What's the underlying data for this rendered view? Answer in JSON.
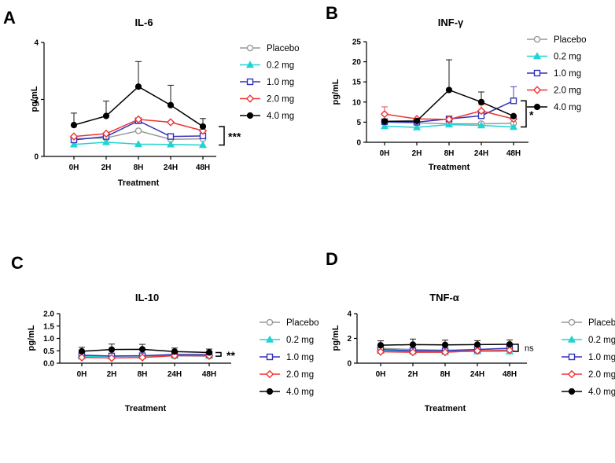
{
  "legend_names": [
    "Placebo",
    "0.2 mg",
    "1.0 mg",
    "2.0 mg",
    "4.0 mg"
  ],
  "series_colors": [
    "#999999",
    "#22d3d3",
    "#3333bb",
    "#ee3333",
    "#000000"
  ],
  "series_markers": [
    "circle-open",
    "triangle-filled",
    "square-open",
    "diamond-open",
    "circle-filled"
  ],
  "chart_data": [
    {
      "panel": "A",
      "type": "line",
      "title": "IL-6",
      "xlabel": "Treatment",
      "ylabel": "pg/mL",
      "categories": [
        "0H",
        "2H",
        "8H",
        "24H",
        "48H"
      ],
      "ylim": [
        0,
        4
      ],
      "yticks": [
        0,
        2,
        4
      ],
      "significance": "***",
      "series": [
        {
          "name": "Placebo",
          "values": [
            0.62,
            0.65,
            0.9,
            0.6,
            0.62
          ]
        },
        {
          "name": "0.2 mg",
          "values": [
            0.42,
            0.5,
            0.43,
            0.42,
            0.4
          ]
        },
        {
          "name": "1.0 mg",
          "values": [
            0.58,
            0.7,
            1.25,
            0.7,
            0.72
          ]
        },
        {
          "name": "2.0 mg",
          "values": [
            0.7,
            0.8,
            1.3,
            1.2,
            0.9
          ]
        },
        {
          "name": "4.0 mg",
          "values": [
            1.1,
            1.42,
            2.45,
            1.8,
            1.05
          ],
          "errors": [
            0.42,
            0.52,
            0.88,
            0.7,
            0.28
          ]
        }
      ]
    },
    {
      "panel": "B",
      "type": "line",
      "title": "INF-γ",
      "xlabel": "Treatment",
      "ylabel": "pg/mL",
      "categories": [
        "0H",
        "2H",
        "8H",
        "24H",
        "48H"
      ],
      "ylim": [
        0,
        25
      ],
      "yticks": [
        0,
        5,
        10,
        15,
        20,
        25
      ],
      "significance": "*",
      "series": [
        {
          "name": "Placebo",
          "values": [
            5,
            4.8,
            4.6,
            4.6,
            4.7
          ]
        },
        {
          "name": "0.2 mg",
          "values": [
            4,
            3.7,
            4.4,
            4.2,
            3.8
          ]
        },
        {
          "name": "1.0 mg",
          "values": [
            5.1,
            5.0,
            5.8,
            6.6,
            10.3
          ],
          "errors": [
            0,
            0,
            0,
            0,
            3.5
          ]
        },
        {
          "name": "2.0 mg",
          "values": [
            7.0,
            5.8,
            5.7,
            7.8,
            5.8
          ],
          "errors": [
            1.8,
            0,
            0,
            1.5,
            0
          ]
        },
        {
          "name": "4.0 mg",
          "values": [
            5.2,
            5.3,
            13.0,
            10.0,
            6.5
          ],
          "errors": [
            0,
            0,
            7.5,
            2.5,
            0
          ]
        }
      ]
    },
    {
      "panel": "C",
      "type": "line",
      "title": "IL-10",
      "xlabel": "Treatment",
      "ylabel": "pg/mL",
      "categories": [
        "0H",
        "2H",
        "8H",
        "24H",
        "48H"
      ],
      "ylim": [
        0,
        2.0
      ],
      "yticks": [
        0.0,
        0.5,
        1.0,
        1.5,
        2.0
      ],
      "ytick_labels": [
        "0.0",
        "0.5",
        "1.0",
        "1.5",
        "2.0"
      ],
      "significance": "**",
      "series": [
        {
          "name": "Placebo",
          "values": [
            0.3,
            0.28,
            0.28,
            0.3,
            0.28
          ]
        },
        {
          "name": "0.2 mg",
          "values": [
            0.27,
            0.28,
            0.3,
            0.3,
            0.3
          ]
        },
        {
          "name": "1.0 mg",
          "values": [
            0.32,
            0.29,
            0.3,
            0.35,
            0.35
          ]
        },
        {
          "name": "2.0 mg",
          "values": [
            0.23,
            0.21,
            0.23,
            0.3,
            0.3
          ]
        },
        {
          "name": "4.0 mg",
          "values": [
            0.48,
            0.55,
            0.56,
            0.47,
            0.43
          ],
          "errors": [
            0.16,
            0.22,
            0.2,
            0.14,
            0.14
          ]
        }
      ]
    },
    {
      "panel": "D",
      "type": "line",
      "title": "TNF-α",
      "xlabel": "Treatment",
      "ylabel": "pg/mL",
      "categories": [
        "0H",
        "2H",
        "8H",
        "24H",
        "48H"
      ],
      "ylim": [
        0,
        4
      ],
      "yticks": [
        0,
        2,
        4
      ],
      "significance": "ns",
      "series": [
        {
          "name": "Placebo",
          "values": [
            1.2,
            1.1,
            1.05,
            1.1,
            1.2
          ]
        },
        {
          "name": "0.2 mg",
          "values": [
            1.0,
            0.95,
            0.92,
            0.95,
            0.95
          ]
        },
        {
          "name": "1.0 mg",
          "values": [
            1.1,
            1.0,
            1.0,
            1.1,
            1.2
          ]
        },
        {
          "name": "2.0 mg",
          "values": [
            0.92,
            0.88,
            0.88,
            1.0,
            1.05
          ]
        },
        {
          "name": "4.0 mg",
          "values": [
            1.45,
            1.5,
            1.48,
            1.5,
            1.52
          ],
          "errors": [
            0.35,
            0.45,
            0.38,
            0.32,
            0.35
          ]
        }
      ]
    }
  ]
}
